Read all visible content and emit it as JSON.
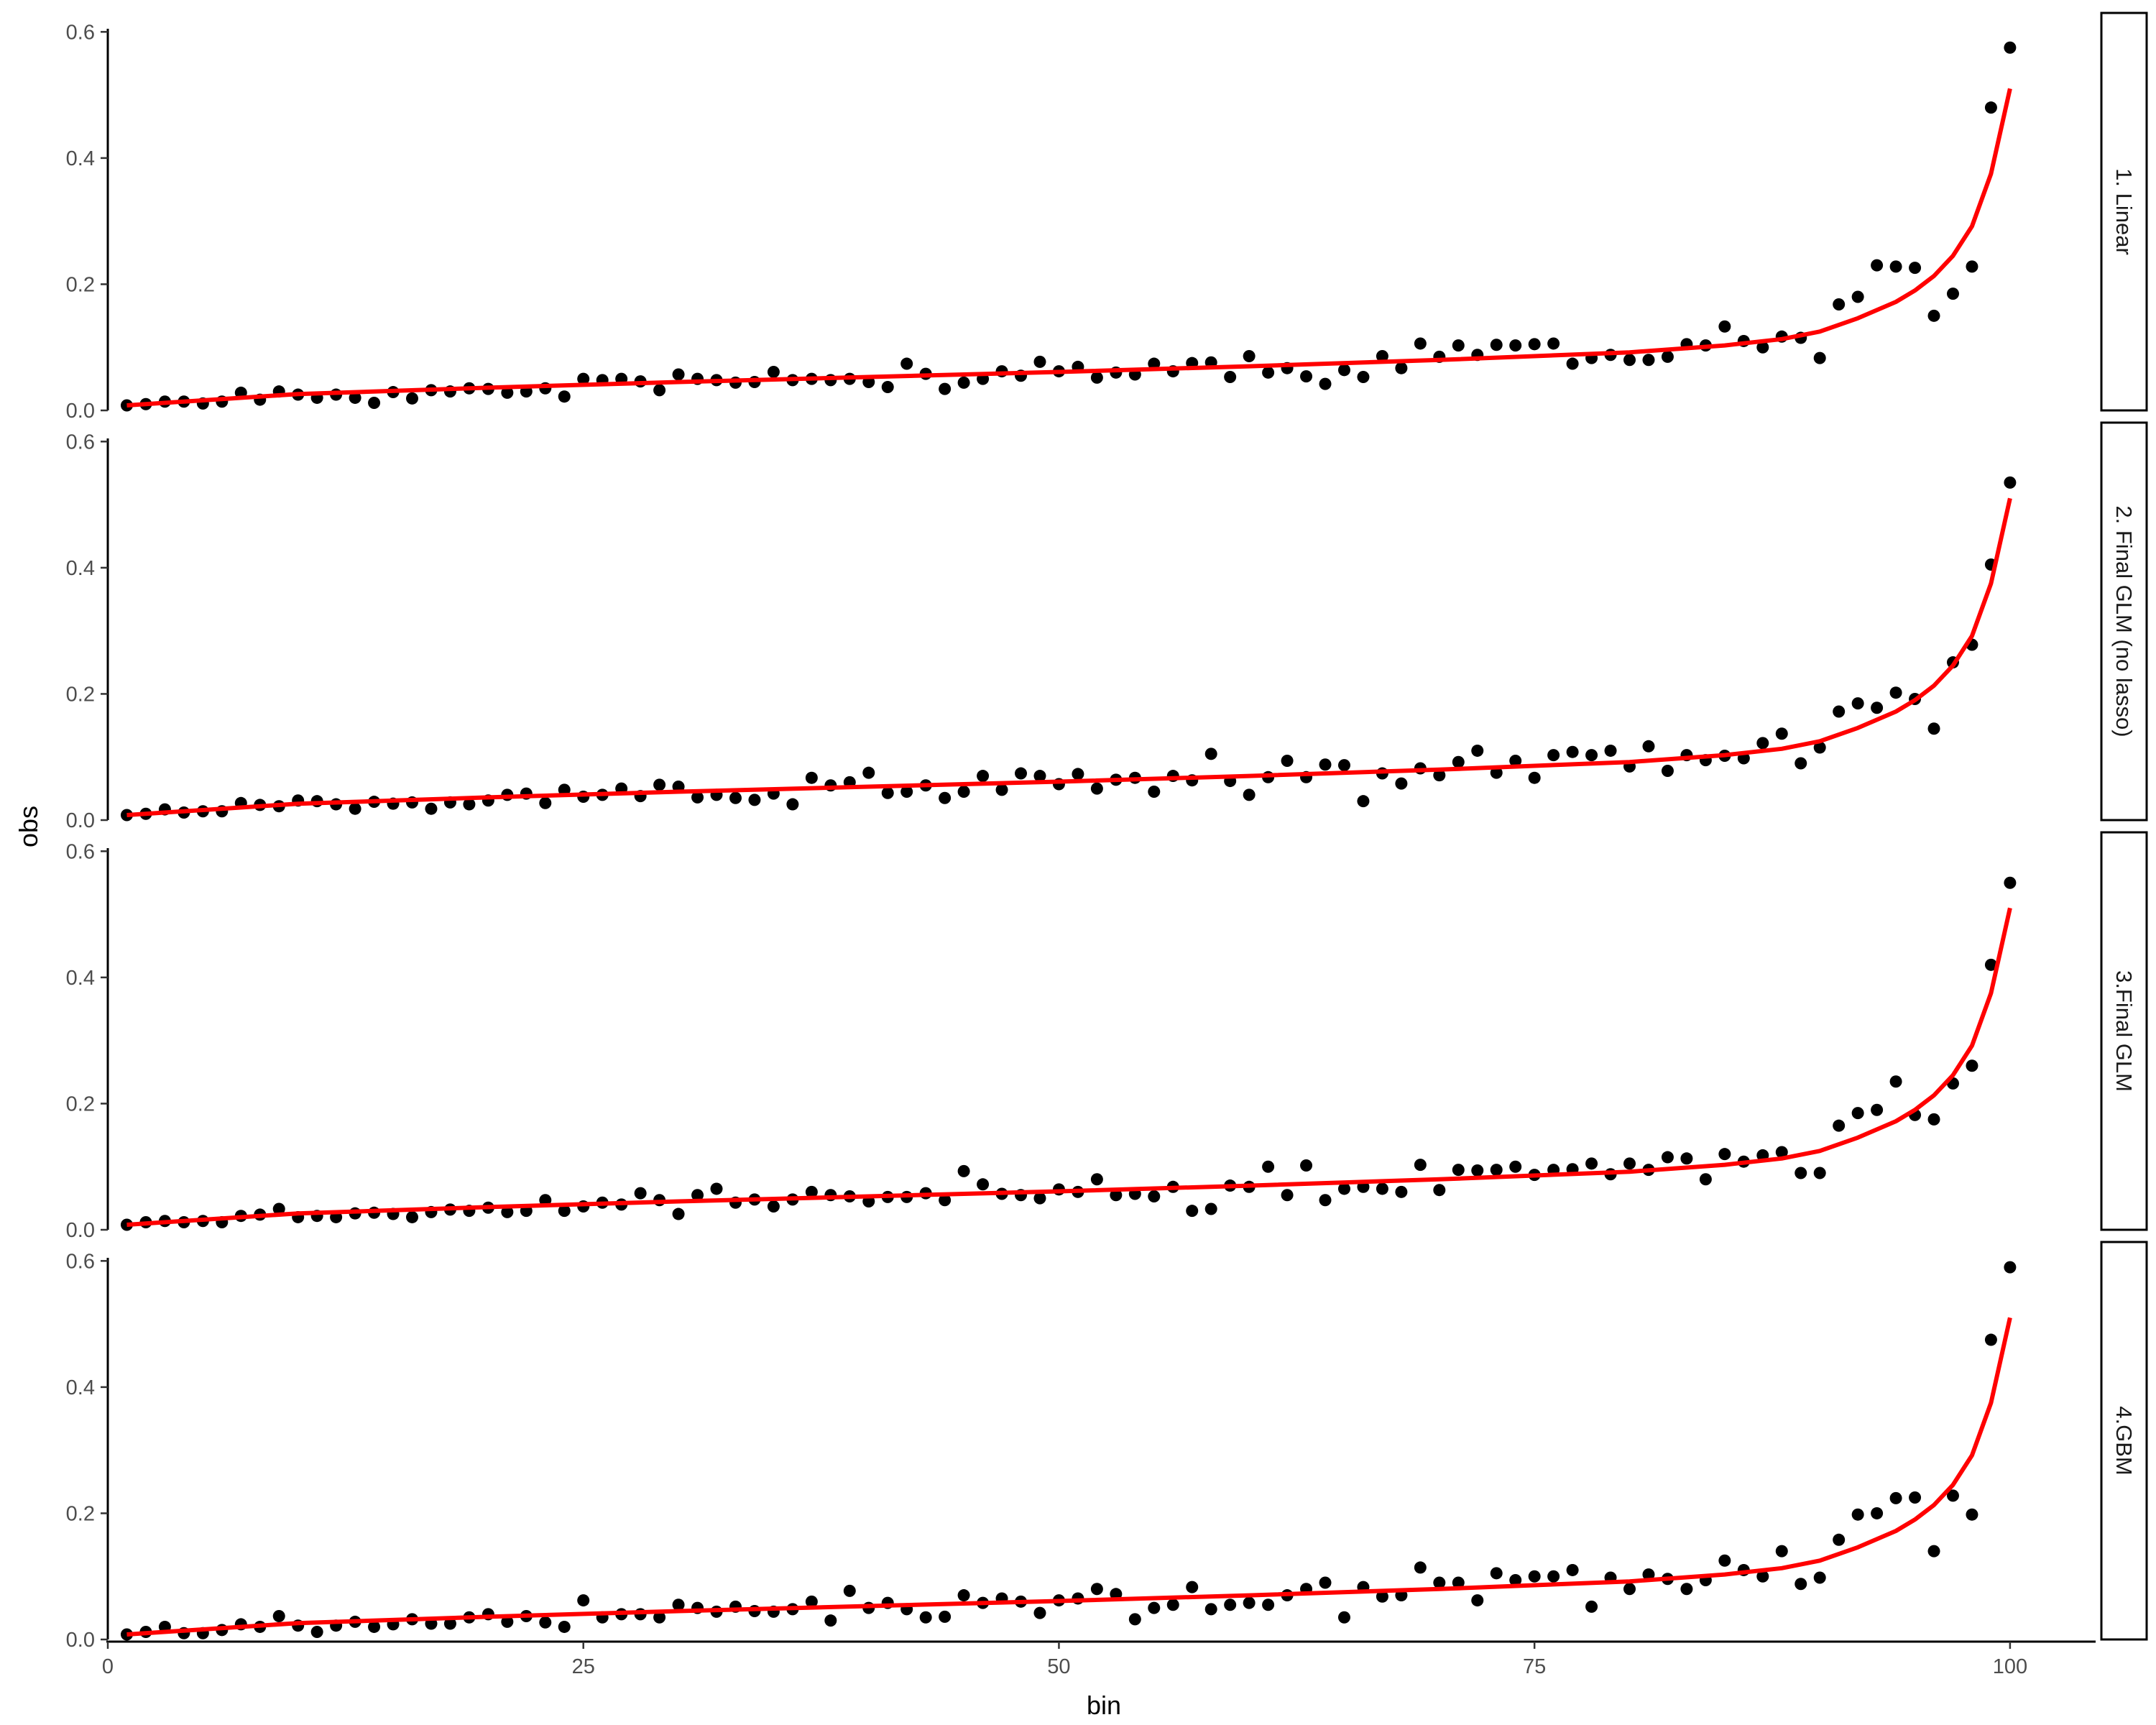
{
  "chart_data": {
    "type": "scatter",
    "layout": "facet-rows",
    "xlabel": "bin",
    "ylabel": "obs",
    "xlim": [
      1,
      100
    ],
    "ylim": [
      0,
      0.6
    ],
    "xticks": [
      0,
      25,
      50,
      75,
      100
    ],
    "yticks": [
      0.0,
      0.2,
      0.4,
      0.6
    ],
    "ytick_labels": [
      "0.0",
      "0.2",
      "0.4",
      "0.6"
    ],
    "grid": false,
    "point_color": "#000000",
    "line_color": "#ff0000",
    "fit_line": {
      "x": [
        1,
        10,
        20,
        30,
        40,
        50,
        60,
        70,
        80,
        85,
        88,
        90,
        92,
        94,
        95,
        96,
        97,
        98,
        99,
        100
      ],
      "y": [
        0.008,
        0.026,
        0.036,
        0.045,
        0.053,
        0.061,
        0.07,
        0.08,
        0.092,
        0.103,
        0.113,
        0.125,
        0.146,
        0.172,
        0.19,
        0.213,
        0.245,
        0.292,
        0.375,
        0.51
      ]
    },
    "panels": [
      {
        "label": "1. Linear",
        "obs": [
          0.008,
          0.01,
          0.014,
          0.014,
          0.011,
          0.014,
          0.028,
          0.017,
          0.03,
          0.025,
          0.02,
          0.025,
          0.02,
          0.012,
          0.029,
          0.019,
          0.032,
          0.03,
          0.035,
          0.034,
          0.028,
          0.03,
          0.035,
          0.022,
          0.05,
          0.048,
          0.05,
          0.046,
          0.032,
          0.057,
          0.05,
          0.048,
          0.044,
          0.045,
          0.061,
          0.048,
          0.05,
          0.048,
          0.05,
          0.045,
          0.037,
          0.074,
          0.058,
          0.034,
          0.044,
          0.05,
          0.062,
          0.055,
          0.077,
          0.062,
          0.069,
          0.052,
          0.06,
          0.057,
          0.074,
          0.062,
          0.075,
          0.076,
          0.053,
          0.086,
          0.06,
          0.067,
          0.054,
          0.042,
          0.064,
          0.053,
          0.086,
          0.067,
          0.106,
          0.085,
          0.103,
          0.088,
          0.104,
          0.103,
          0.105,
          0.106,
          0.074,
          0.083,
          0.088,
          0.08,
          0.08,
          0.085,
          0.105,
          0.103,
          0.133,
          0.11,
          0.1,
          0.117,
          0.115,
          0.083,
          0.168,
          0.18,
          0.23,
          0.228,
          0.226,
          0.15,
          0.185,
          0.228,
          0.48,
          0.575
        ]
      },
      {
        "label": "2. Final GLM (no lasso)",
        "obs": [
          0.008,
          0.01,
          0.017,
          0.012,
          0.014,
          0.014,
          0.027,
          0.024,
          0.022,
          0.031,
          0.03,
          0.025,
          0.018,
          0.029,
          0.026,
          0.028,
          0.018,
          0.028,
          0.025,
          0.031,
          0.04,
          0.042,
          0.027,
          0.048,
          0.037,
          0.04,
          0.05,
          0.038,
          0.056,
          0.053,
          0.036,
          0.04,
          0.035,
          0.032,
          0.042,
          0.025,
          0.067,
          0.055,
          0.06,
          0.075,
          0.043,
          0.045,
          0.055,
          0.035,
          0.045,
          0.07,
          0.048,
          0.074,
          0.07,
          0.057,
          0.073,
          0.05,
          0.064,
          0.067,
          0.045,
          0.07,
          0.063,
          0.105,
          0.062,
          0.04,
          0.068,
          0.094,
          0.068,
          0.088,
          0.087,
          0.03,
          0.074,
          0.058,
          0.082,
          0.071,
          0.092,
          0.11,
          0.075,
          0.094,
          0.067,
          0.103,
          0.108,
          0.103,
          0.11,
          0.085,
          0.117,
          0.078,
          0.103,
          0.095,
          0.102,
          0.098,
          0.122,
          0.137,
          0.09,
          0.115,
          0.172,
          0.185,
          0.178,
          0.202,
          0.192,
          0.145,
          0.25,
          0.278,
          0.405,
          0.535
        ]
      },
      {
        "label": "3.Final GLM",
        "obs": [
          0.008,
          0.012,
          0.014,
          0.012,
          0.014,
          0.012,
          0.022,
          0.024,
          0.033,
          0.02,
          0.022,
          0.02,
          0.026,
          0.027,
          0.025,
          0.02,
          0.028,
          0.032,
          0.03,
          0.035,
          0.028,
          0.03,
          0.047,
          0.03,
          0.037,
          0.043,
          0.04,
          0.058,
          0.047,
          0.025,
          0.055,
          0.065,
          0.043,
          0.048,
          0.037,
          0.048,
          0.06,
          0.055,
          0.053,
          0.045,
          0.052,
          0.052,
          0.058,
          0.047,
          0.093,
          0.072,
          0.057,
          0.055,
          0.05,
          0.064,
          0.06,
          0.08,
          0.055,
          0.057,
          0.053,
          0.068,
          0.03,
          0.033,
          0.07,
          0.068,
          0.1,
          0.055,
          0.102,
          0.047,
          0.065,
          0.068,
          0.065,
          0.06,
          0.103,
          0.063,
          0.095,
          0.094,
          0.095,
          0.1,
          0.087,
          0.095,
          0.096,
          0.105,
          0.088,
          0.105,
          0.095,
          0.115,
          0.113,
          0.08,
          0.12,
          0.108,
          0.118,
          0.123,
          0.09,
          0.09,
          0.165,
          0.185,
          0.19,
          0.235,
          0.182,
          0.175,
          0.232,
          0.26,
          0.42,
          0.55
        ]
      },
      {
        "label": "4.GBM",
        "obs": [
          0.008,
          0.012,
          0.02,
          0.01,
          0.01,
          0.015,
          0.024,
          0.02,
          0.037,
          0.022,
          0.012,
          0.022,
          0.028,
          0.02,
          0.024,
          0.032,
          0.025,
          0.025,
          0.035,
          0.04,
          0.028,
          0.037,
          0.027,
          0.02,
          0.062,
          0.035,
          0.04,
          0.04,
          0.035,
          0.055,
          0.05,
          0.044,
          0.052,
          0.045,
          0.044,
          0.048,
          0.06,
          0.03,
          0.077,
          0.05,
          0.058,
          0.048,
          0.035,
          0.036,
          0.07,
          0.058,
          0.065,
          0.06,
          0.042,
          0.062,
          0.065,
          0.08,
          0.072,
          0.032,
          0.05,
          0.055,
          0.083,
          0.048,
          0.055,
          0.058,
          0.055,
          0.07,
          0.08,
          0.09,
          0.035,
          0.083,
          0.068,
          0.07,
          0.114,
          0.09,
          0.09,
          0.062,
          0.105,
          0.094,
          0.1,
          0.1,
          0.11,
          0.052,
          0.098,
          0.08,
          0.103,
          0.096,
          0.08,
          0.094,
          0.125,
          0.11,
          0.1,
          0.14,
          0.088,
          0.098,
          0.158,
          0.198,
          0.2,
          0.224,
          0.225,
          0.14,
          0.228,
          0.198,
          0.475,
          0.59
        ]
      }
    ]
  }
}
